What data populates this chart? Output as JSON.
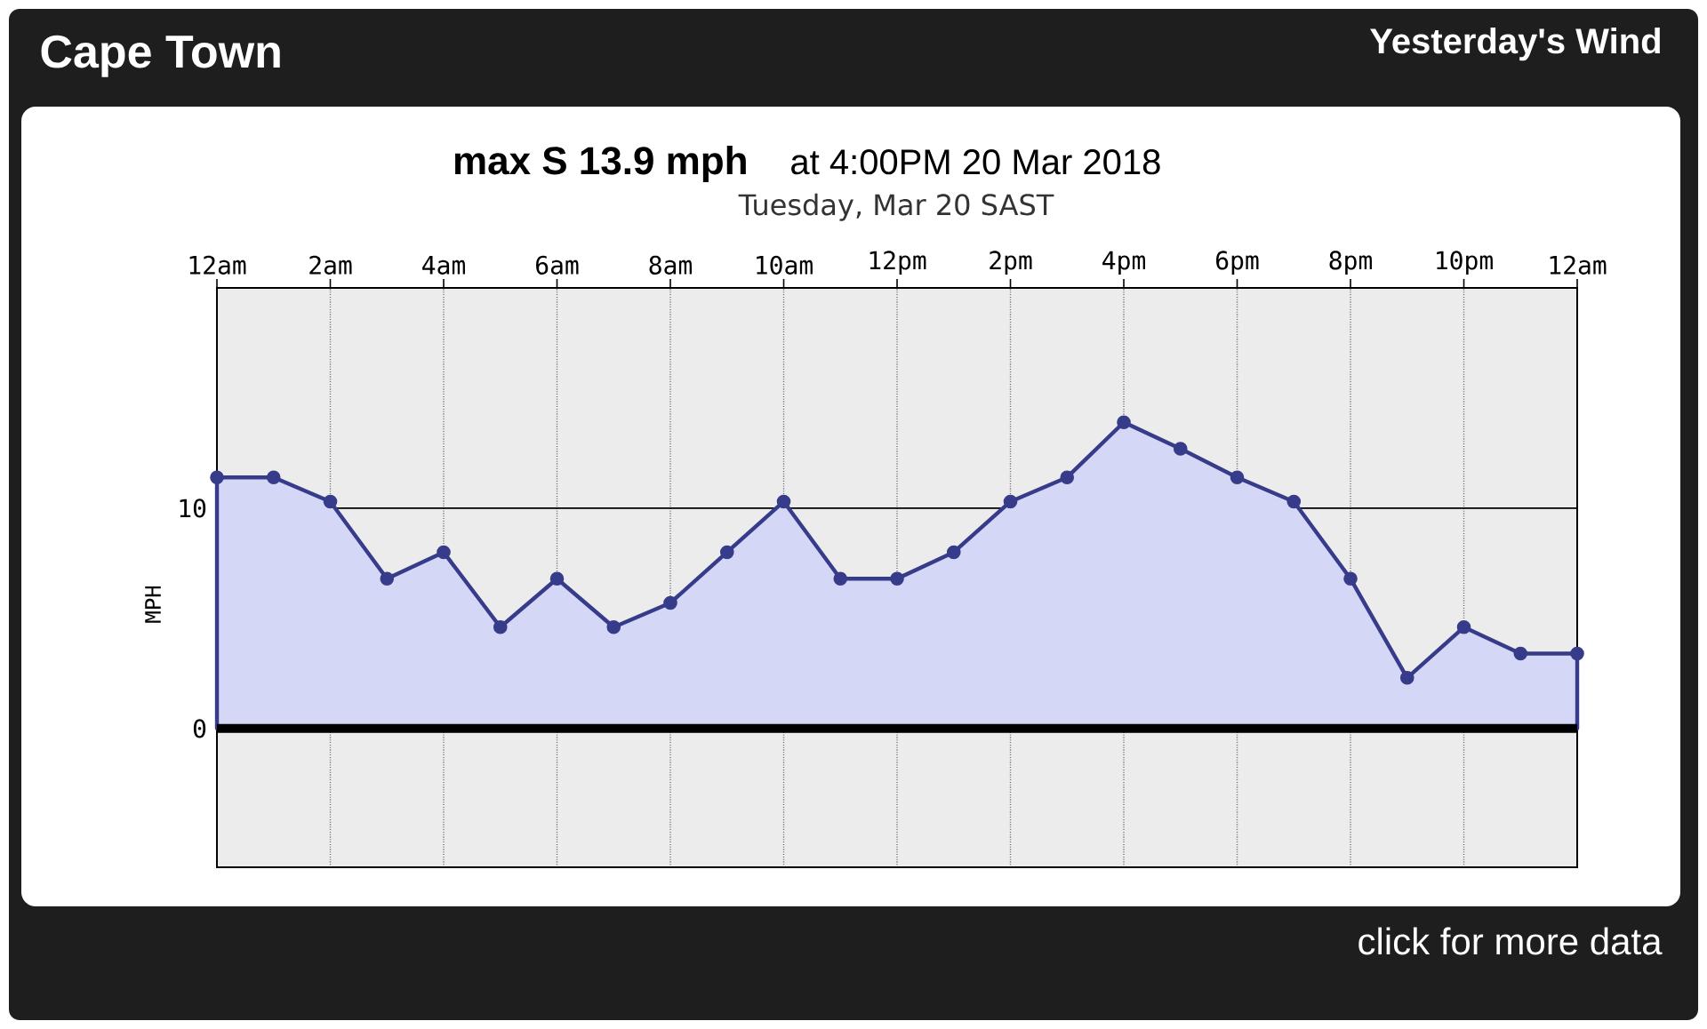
{
  "chart_data": {
    "type": "area",
    "title": "Cape Town",
    "subtitle": "Yesterday's Wind",
    "xlabel": "Tuesday, Mar 20 SAST",
    "ylabel": "MPH",
    "annotations": [
      "max S 13.9 mph",
      "at 4:00PM 20 Mar 2018",
      "click for more data"
    ],
    "x": [
      "2018-03-20T00:00",
      "2018-03-20T01:00",
      "2018-03-20T02:00",
      "2018-03-20T03:00",
      "2018-03-20T04:00",
      "2018-03-20T05:00",
      "2018-03-20T06:00",
      "2018-03-20T07:00",
      "2018-03-20T08:00",
      "2018-03-20T09:00",
      "2018-03-20T10:00",
      "2018-03-20T11:00",
      "2018-03-20T12:00",
      "2018-03-20T13:00",
      "2018-03-20T14:00",
      "2018-03-20T15:00",
      "2018-03-20T16:00",
      "2018-03-20T17:00",
      "2018-03-20T18:00",
      "2018-03-20T19:00",
      "2018-03-20T20:00",
      "2018-03-20T21:00",
      "2018-03-20T22:00",
      "2018-03-20T23:00",
      "2018-03-21T00:00"
    ],
    "series": [
      {
        "color": "#363b8a",
        "values": [
          11.4,
          11.4,
          10.3,
          6.8,
          8.0,
          4.6,
          6.8,
          4.6,
          5.7,
          8.0,
          10.3,
          6.8,
          6.8,
          8.0,
          10.3,
          11.4,
          13.9,
          12.7,
          11.4,
          10.3,
          6.8,
          2.3,
          4.6,
          3.4,
          3.4
        ]
      }
    ],
    "xlim": [
      "2018-03-20T00:00",
      "2018-03-21T00:00"
    ],
    "xticks": [
      {
        "value": "2018-03-20T00:00",
        "label": "12am"
      },
      {
        "value": "2018-03-20T02:00",
        "label": "2am"
      },
      {
        "value": "2018-03-20T04:00",
        "label": "4am"
      },
      {
        "value": "2018-03-20T06:00",
        "label": "6am"
      },
      {
        "value": "2018-03-20T08:00",
        "label": "8am"
      },
      {
        "value": "2018-03-20T10:00",
        "label": "10am"
      },
      {
        "value": "2018-03-20T12:00",
        "label": "12pm"
      },
      {
        "value": "2018-03-20T14:00",
        "label": "2pm"
      },
      {
        "value": "2018-03-20T16:00",
        "label": "4pm"
      },
      {
        "value": "2018-03-20T18:00",
        "label": "6pm"
      },
      {
        "value": "2018-03-20T20:00",
        "label": "8pm"
      },
      {
        "value": "2018-03-20T22:00",
        "label": "10pm"
      },
      {
        "value": "2018-03-21T00:00",
        "label": "12am"
      }
    ],
    "ylim": [
      -6.3,
      20
    ],
    "yticks": [
      0,
      10
    ],
    "grid": true,
    "marker": "circle",
    "line_style": "solid",
    "ref_lines": [
      {
        "axis": "y",
        "value": 0
      }
    ]
  }
}
